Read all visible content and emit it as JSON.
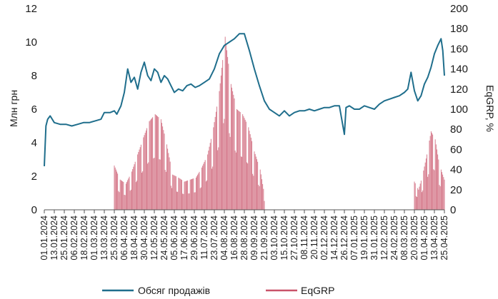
{
  "chart_data": {
    "type": "line+bar",
    "ylabel_left": "Млн грн",
    "ylabel_right": "EqGRP, %",
    "y_left_ticks": [
      "0",
      "2",
      "4",
      "6",
      "8",
      "10",
      "12"
    ],
    "y_right_ticks": [
      "0",
      "20",
      "40",
      "60",
      "80",
      "100",
      "120",
      "140",
      "160",
      "180",
      "200"
    ],
    "ylim_left": [
      0,
      12
    ],
    "ylim_right": [
      0,
      200
    ],
    "x_range": [
      "2024-01-01",
      "2025-04-25"
    ],
    "x_tick_labels": [
      "01.01.2024",
      "13.01.2024",
      "25.01.2024",
      "06.02.2024",
      "18.02.2024",
      "01.03.2024",
      "13.03.2024",
      "25.03.2024",
      "06.04.2024",
      "18.04.2024",
      "30.04.2024",
      "12.05.2024",
      "24.05.2024",
      "05.06.2024",
      "17.06.2024",
      "29.06.2024",
      "11.07.2024",
      "23.07.2024",
      "04.08.2024",
      "16.08.2024",
      "28.08.2024",
      "09.09.2024",
      "21.09.2024",
      "03.10.2024",
      "15.10.2024",
      "27.10.2024",
      "08.11.2024",
      "20.11.2024",
      "02.12.2024",
      "14.12.2024",
      "26.12.2024",
      "07.01.2025",
      "19.01.2025",
      "31.01.2025",
      "12.02.2025",
      "24.02.2025",
      "08.03.2025",
      "20.03.2025",
      "01.04.2025",
      "13.04.2025",
      "25.04.2025"
    ],
    "grid": false,
    "legend_position": "bottom",
    "colors": {
      "sales": "#1f6e8c",
      "eqgrp": "#c9546a"
    },
    "series": [
      {
        "name": "Обсяг продажів",
        "axis": "left",
        "kind": "line",
        "x": [
          "2024-01-01",
          "2024-01-03",
          "2024-01-05",
          "2024-01-08",
          "2024-01-13",
          "2024-01-20",
          "2024-01-27",
          "2024-02-03",
          "2024-02-10",
          "2024-02-17",
          "2024-02-24",
          "2024-03-02",
          "2024-03-09",
          "2024-03-13",
          "2024-03-20",
          "2024-03-25",
          "2024-03-28",
          "2024-04-02",
          "2024-04-06",
          "2024-04-10",
          "2024-04-14",
          "2024-04-18",
          "2024-04-22",
          "2024-04-26",
          "2024-04-30",
          "2024-05-04",
          "2024-05-08",
          "2024-05-12",
          "2024-05-16",
          "2024-05-20",
          "2024-05-24",
          "2024-05-28",
          "2024-06-01",
          "2024-06-05",
          "2024-06-10",
          "2024-06-15",
          "2024-06-20",
          "2024-06-25",
          "2024-06-30",
          "2024-07-05",
          "2024-07-11",
          "2024-07-17",
          "2024-07-23",
          "2024-07-29",
          "2024-08-04",
          "2024-08-10",
          "2024-08-16",
          "2024-08-22",
          "2024-08-28",
          "2024-09-03",
          "2024-09-09",
          "2024-09-15",
          "2024-09-21",
          "2024-09-27",
          "2024-10-03",
          "2024-10-09",
          "2024-10-15",
          "2024-10-21",
          "2024-10-27",
          "2024-11-02",
          "2024-11-08",
          "2024-11-14",
          "2024-11-20",
          "2024-11-26",
          "2024-12-02",
          "2024-12-08",
          "2024-12-14",
          "2024-12-20",
          "2024-12-26",
          "2024-12-28",
          "2025-01-01",
          "2025-01-07",
          "2025-01-13",
          "2025-01-19",
          "2025-01-25",
          "2025-01-31",
          "2025-02-06",
          "2025-02-12",
          "2025-02-18",
          "2025-02-24",
          "2025-03-02",
          "2025-03-08",
          "2025-03-12",
          "2025-03-16",
          "2025-03-20",
          "2025-03-24",
          "2025-03-28",
          "2025-04-01",
          "2025-04-05",
          "2025-04-09",
          "2025-04-13",
          "2025-04-17",
          "2025-04-21",
          "2025-04-23",
          "2025-04-25"
        ],
        "y": [
          2.6,
          5.0,
          5.4,
          5.6,
          5.2,
          5.1,
          5.1,
          5.0,
          5.1,
          5.2,
          5.2,
          5.3,
          5.4,
          5.8,
          5.8,
          5.9,
          5.7,
          6.2,
          7.0,
          8.4,
          7.6,
          7.9,
          7.2,
          8.2,
          8.8,
          8.0,
          7.7,
          8.4,
          8.2,
          7.6,
          8.0,
          7.8,
          7.4,
          7.0,
          7.2,
          7.1,
          7.4,
          7.5,
          7.3,
          7.4,
          7.6,
          7.8,
          8.4,
          9.3,
          9.8,
          10.0,
          10.2,
          10.5,
          10.5,
          9.5,
          8.4,
          7.4,
          6.5,
          6.0,
          5.8,
          5.6,
          5.9,
          5.6,
          5.8,
          5.9,
          5.9,
          6.0,
          5.9,
          6.0,
          6.1,
          6.1,
          6.2,
          6.2,
          4.5,
          6.1,
          6.2,
          6.0,
          6.0,
          6.2,
          6.1,
          6.0,
          6.3,
          6.5,
          6.6,
          6.7,
          6.8,
          7.0,
          7.2,
          8.2,
          7.1,
          6.5,
          6.8,
          7.5,
          7.9,
          8.5,
          9.3,
          9.8,
          10.2,
          9.5,
          8.0
        ]
      },
      {
        "name": "EqGRP",
        "axis": "right",
        "kind": "bar",
        "segments": [
          {
            "from": "2024-03-25",
            "to": "2024-09-21",
            "x": [
              "2024-03-25",
              "2024-04-01",
              "2024-04-08",
              "2024-04-15",
              "2024-04-22",
              "2024-04-29",
              "2024-05-06",
              "2024-05-13",
              "2024-05-20",
              "2024-05-27",
              "2024-06-03",
              "2024-06-10",
              "2024-06-17",
              "2024-06-24",
              "2024-07-01",
              "2024-07-08",
              "2024-07-15",
              "2024-07-22",
              "2024-07-29",
              "2024-08-05",
              "2024-08-12",
              "2024-08-19",
              "2024-08-26",
              "2024-09-02",
              "2024-09-09",
              "2024-09-16",
              "2024-09-21"
            ],
            "y": [
              44,
              30,
              26,
              38,
              55,
              72,
              88,
              95,
              90,
              65,
              35,
              32,
              28,
              30,
              32,
              42,
              55,
              82,
              118,
              172,
              125,
              100,
              95,
              82,
              58,
              40,
              16
            ]
          },
          {
            "from": "2025-03-20",
            "to": "2025-04-25",
            "x": [
              "2025-03-20",
              "2025-03-25",
              "2025-03-30",
              "2025-04-04",
              "2025-04-09",
              "2025-04-14",
              "2025-04-19",
              "2025-04-25"
            ],
            "y": [
              28,
              20,
              35,
              55,
              78,
              70,
              45,
              30
            ]
          }
        ]
      }
    ]
  }
}
